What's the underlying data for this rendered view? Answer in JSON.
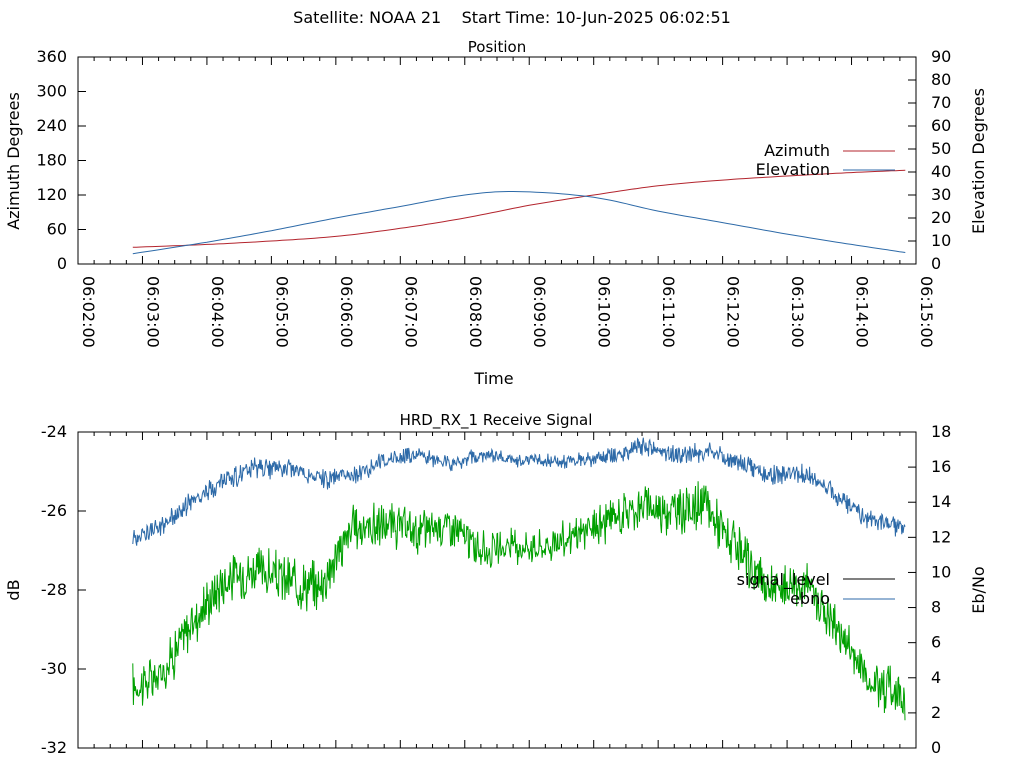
{
  "figure": {
    "title": "Satellite: NOAA 21    Start Time: 10-Jun-2025 06:02:51"
  },
  "chart_data": [
    {
      "type": "line",
      "title": "Position",
      "xlabel": "Time",
      "ylabel": "Azimuth Degrees",
      "y2label": "Elevation Degrees",
      "ylim": [
        0,
        360
      ],
      "y2lim": [
        0,
        90
      ],
      "yticks": [
        "0",
        "60",
        "120",
        "180",
        "240",
        "300",
        "360"
      ],
      "y2ticks": [
        "0",
        "10",
        "20",
        "30",
        "40",
        "50",
        "60",
        "70",
        "80",
        "90"
      ],
      "xticks": [
        "06:02:00",
        "06:03:00",
        "06:04:00",
        "06:05:00",
        "06:06:00",
        "06:07:00",
        "06:08:00",
        "06:09:00",
        "06:10:00",
        "06:11:00",
        "06:12:00",
        "06:13:00",
        "06:14:00",
        "06:15:00"
      ],
      "x_range": [
        "06:02:00",
        "06:15:00"
      ],
      "legend_position": "right",
      "grid": false,
      "series": [
        {
          "name": "Azimuth",
          "axis": "left",
          "color": "#b3242d",
          "x": [
            "06:02:51",
            "06:04:00",
            "06:05:00",
            "06:06:00",
            "06:07:00",
            "06:08:00",
            "06:09:00",
            "06:10:00",
            "06:11:00",
            "06:12:00",
            "06:13:00",
            "06:14:00",
            "06:14:50"
          ],
          "values": [
            29,
            34,
            40,
            48,
            62,
            80,
            102,
            120,
            136,
            146,
            153,
            159,
            163
          ]
        },
        {
          "name": "Elevation",
          "axis": "right",
          "color": "#2d6aa8",
          "x": [
            "06:02:51",
            "06:04:00",
            "06:05:00",
            "06:06:00",
            "06:07:00",
            "06:08:00",
            "06:08:50",
            "06:10:00",
            "06:11:00",
            "06:12:00",
            "06:13:00",
            "06:14:00",
            "06:14:50"
          ],
          "values": [
            4.5,
            9.5,
            14.5,
            20,
            25,
            30,
            31.5,
            29,
            23,
            18,
            13,
            8.5,
            5
          ]
        }
      ]
    },
    {
      "type": "line",
      "title": "HRD_RX_1 Receive Signal",
      "ylabel": "dB",
      "y2label": "Eb/No",
      "ylim": [
        -32,
        -24
      ],
      "y2lim": [
        0,
        18
      ],
      "yticks": [
        "-24",
        "-26",
        "-28",
        "-30",
        "-32"
      ],
      "y2ticks": [
        "0",
        "2",
        "4",
        "6",
        "8",
        "10",
        "12",
        "14",
        "16",
        "18"
      ],
      "x_range": [
        "06:02:00",
        "06:15:00"
      ],
      "legend_position": "right",
      "grid": false,
      "series": [
        {
          "name": "signal_level",
          "axis": "left",
          "color": "#000000",
          "x": [],
          "values": []
        },
        {
          "name": "ebno",
          "axis": "right",
          "color": "#2d6aa8",
          "x": [
            "06:02:51",
            "06:03:15",
            "06:03:45",
            "06:04:15",
            "06:04:45",
            "06:05:15",
            "06:05:45",
            "06:06:15",
            "06:06:45",
            "06:07:15",
            "06:07:45",
            "06:08:15",
            "06:08:45",
            "06:09:15",
            "06:09:45",
            "06:10:15",
            "06:10:45",
            "06:11:15",
            "06:11:45",
            "06:12:15",
            "06:12:45",
            "06:13:15",
            "06:13:45",
            "06:14:15",
            "06:14:50"
          ],
          "values": [
            12,
            12.5,
            14,
            15.2,
            15.9,
            16,
            15.3,
            15.5,
            16.4,
            16.7,
            16.2,
            16.7,
            16.4,
            16.3,
            16.4,
            16.6,
            17.2,
            16.7,
            16.9,
            16.3,
            15.5,
            15.6,
            14.5,
            13,
            12.5
          ]
        },
        {
          "name": "",
          "axis": "right",
          "color": "#00a000",
          "x": [
            "06:02:51",
            "06:03:15",
            "06:03:45",
            "06:04:15",
            "06:04:45",
            "06:05:15",
            "06:05:45",
            "06:06:15",
            "06:06:45",
            "06:07:15",
            "06:07:45",
            "06:08:15",
            "06:08:45",
            "06:09:15",
            "06:09:45",
            "06:10:15",
            "06:10:45",
            "06:11:15",
            "06:11:45",
            "06:12:15",
            "06:12:45",
            "06:13:15",
            "06:13:45",
            "06:14:15",
            "06:14:50"
          ],
          "values": [
            3.5,
            4,
            7,
            9.5,
            10.2,
            9.5,
            9.2,
            12.5,
            12.7,
            12.3,
            12.8,
            11.2,
            11.5,
            11.5,
            12.1,
            13,
            13.8,
            13.5,
            13.8,
            11,
            9,
            9.5,
            7,
            4,
            3
          ]
        }
      ]
    }
  ]
}
